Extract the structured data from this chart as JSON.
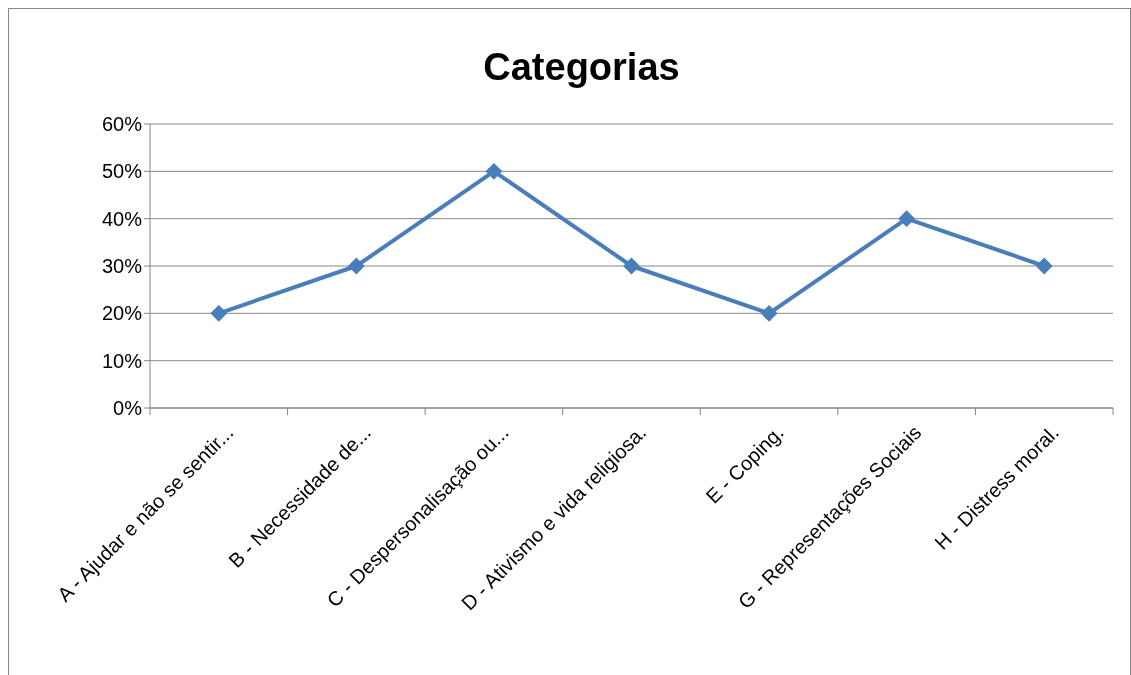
{
  "chart_data": {
    "type": "line",
    "title": "Categorias",
    "categories": [
      "A - Ajudar e não se sentir...",
      "B - Necessidade de...",
      "C - Despersonalisação ou...",
      "D - Ativismo e vida religiosa.",
      "E - Coping.",
      "G - Representações Sociais",
      "H - Distress moral."
    ],
    "series": [
      {
        "color": "#4a7ebb",
        "values": [
          20,
          30,
          50,
          30,
          20,
          40,
          30
        ]
      }
    ],
    "ylim": [
      0,
      60
    ],
    "yticks": [
      {
        "value": 0,
        "label": "0%"
      },
      {
        "value": 10,
        "label": "10%"
      },
      {
        "value": 20,
        "label": "20%"
      },
      {
        "value": 30,
        "label": "30%"
      },
      {
        "value": 40,
        "label": "40%"
      },
      {
        "value": 50,
        "label": "50%"
      },
      {
        "value": 60,
        "label": "60%"
      }
    ],
    "grid": "y",
    "marker": "diamond",
    "line_style": "solid"
  }
}
